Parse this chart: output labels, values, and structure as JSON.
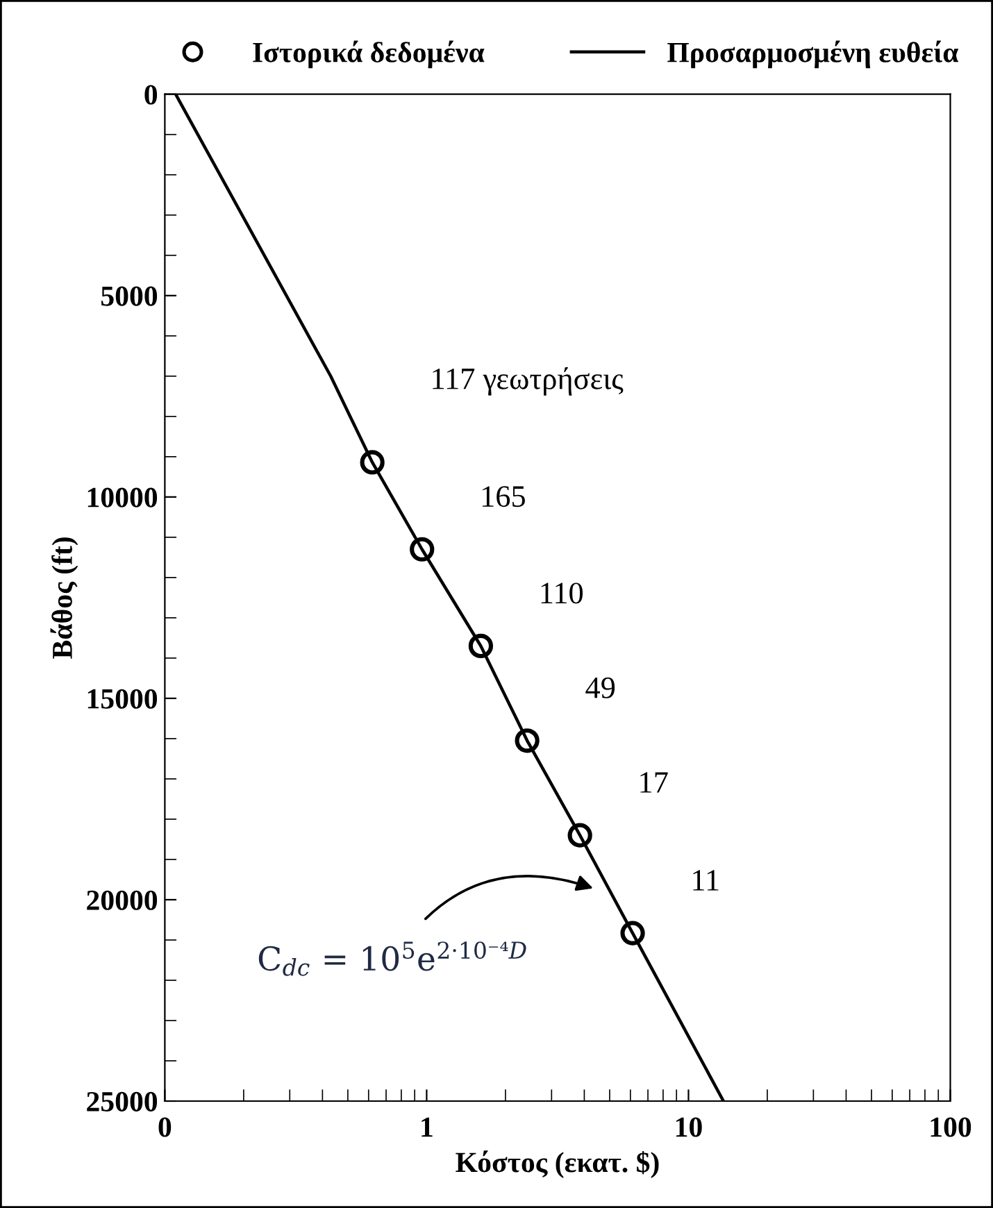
{
  "chart_data": {
    "type": "scatter",
    "xlabel": "Κόστος (εκατ. $)",
    "ylabel": "Βάθος (ft)",
    "log": "x",
    "grid": false,
    "legend": "top",
    "xlim": [
      0.1,
      100
    ],
    "xticks": [
      {
        "value": 0.1,
        "label": "0"
      },
      1,
      10,
      100
    ],
    "ylim": [
      25000,
      0
    ],
    "yticks": [
      0,
      5000,
      10000,
      15000,
      20000,
      25000
    ],
    "series": [
      {
        "name": "Ιστορικά δεδομένα",
        "marker": "circle",
        "color": "#000000",
        "x": [
          0.62,
          0.96,
          1.61,
          2.42,
          3.85,
          6.12
        ],
        "values": [
          9140,
          11300,
          13700,
          16050,
          18400,
          20830
        ]
      },
      {
        "name": "Προσαρμοσμένη ευθεία",
        "type": "line",
        "marker": "none",
        "line_style": "solid",
        "color": "#000000",
        "x": [
          0.11,
          0.43,
          0.62,
          0.96,
          1.61,
          2.42,
          3.85,
          6.12,
          13.6
        ],
        "values": [
          0,
          7000,
          9140,
          11300,
          13700,
          16050,
          18400,
          20830,
          25000
        ]
      }
    ],
    "annotations": [
      "117 γεωτρήσεις",
      "165",
      "110",
      "49",
      "17",
      "11",
      "C$_{dc}$ = 10$^{5}$e$^{2·10⁻⁴D}$"
    ]
  }
}
